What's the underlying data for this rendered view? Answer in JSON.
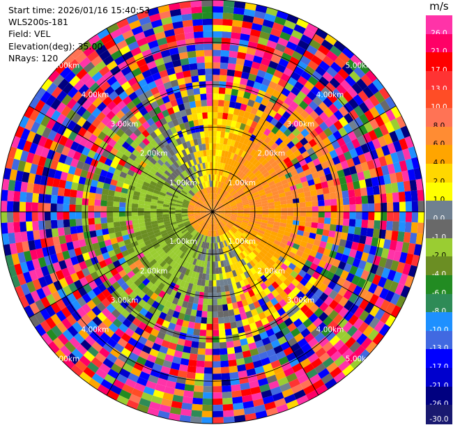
{
  "info": {
    "start_time": "Start time: 2026/01/16 15:40:53",
    "site": "WLS200s-181",
    "field": "Field: VEL",
    "elevation": "Elevation(deg): 35.00",
    "nrays": "NRays: 120"
  },
  "colorbar": {
    "unit": "m/s",
    "ticks": [
      "26.0",
      "21.0",
      "17.0",
      "13.0",
      "10.0",
      "8.0",
      "6.0",
      "4.0",
      "2.0",
      "1.0",
      "0.0",
      "-1.0",
      "-2.0",
      "-4.0",
      "-6.0",
      "-8.0",
      "-10.0",
      "-13.0",
      "-17.0",
      "-21.0",
      "-26.0",
      "-30.0"
    ],
    "colors": [
      "#ff33a8",
      "#ff0066",
      "#ff0000",
      "#ff3333",
      "#ff4d26",
      "#ff7355",
      "#ff8c33",
      "#ffa500",
      "#ffd700",
      "#ffff00",
      "#708090",
      "#696969",
      "#9acd32",
      "#6b8e23",
      "#228b22",
      "#2e8b57",
      "#1e90ff",
      "#4169e1",
      "#0000ff",
      "#0000cd",
      "#000080",
      "#191970"
    ]
  },
  "chart_data": {
    "type": "ppi",
    "field": "VEL",
    "unit": "m/s",
    "nrays": 120,
    "elevation_deg": 35.0,
    "range_ring_labels_km": [
      "1.00km",
      "2.00km",
      "3.00km",
      "4.00km",
      "5.00km"
    ],
    "range_rings_km": [
      1,
      2,
      3,
      4,
      5
    ],
    "max_range_km": 5.0
  }
}
